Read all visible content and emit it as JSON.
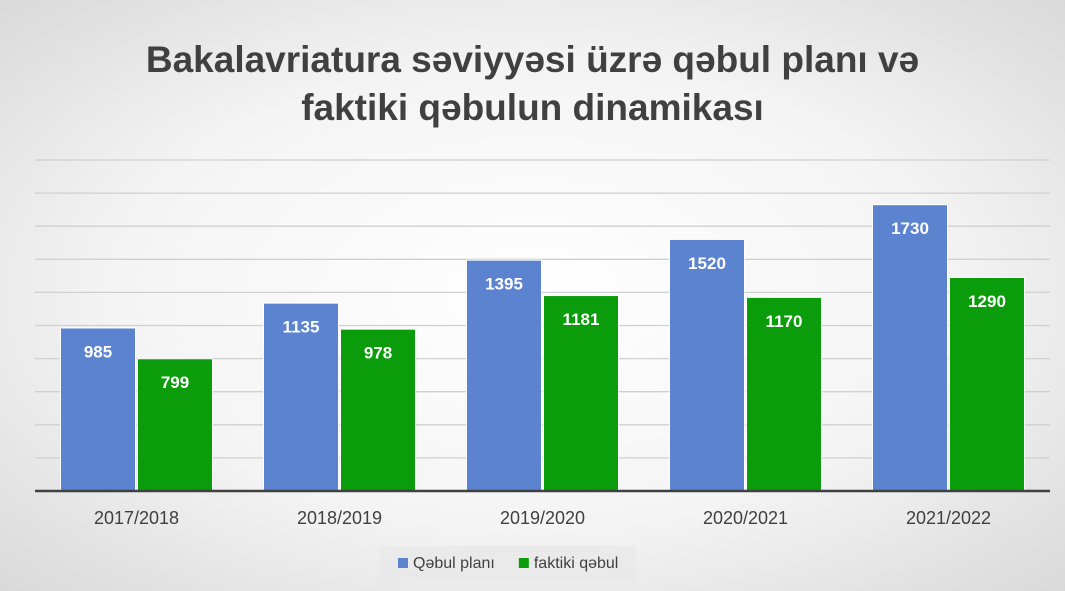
{
  "chart_data": {
    "type": "bar",
    "title": "Bakalavriatura səviyyəsi üzrə qəbul planı və faktiki qəbulun dinamikası",
    "categories": [
      "2017/2018",
      "2018/2019",
      "2019/2020",
      "2020/2021",
      "2021/2022"
    ],
    "series": [
      {
        "name": "Qəbul planı",
        "color": "#5b83d0",
        "values": [
          985,
          1135,
          1395,
          1520,
          1730
        ]
      },
      {
        "name": "faktiki qəbul",
        "color": "#0a9c0a",
        "values": [
          799,
          978,
          1181,
          1170,
          1290
        ]
      }
    ],
    "ylim": [
      0,
      2000
    ],
    "yticks": [
      0,
      200,
      400,
      600,
      800,
      1000,
      1200,
      1400,
      1600,
      1800,
      2000
    ],
    "grid": true,
    "legend": "bottom"
  }
}
